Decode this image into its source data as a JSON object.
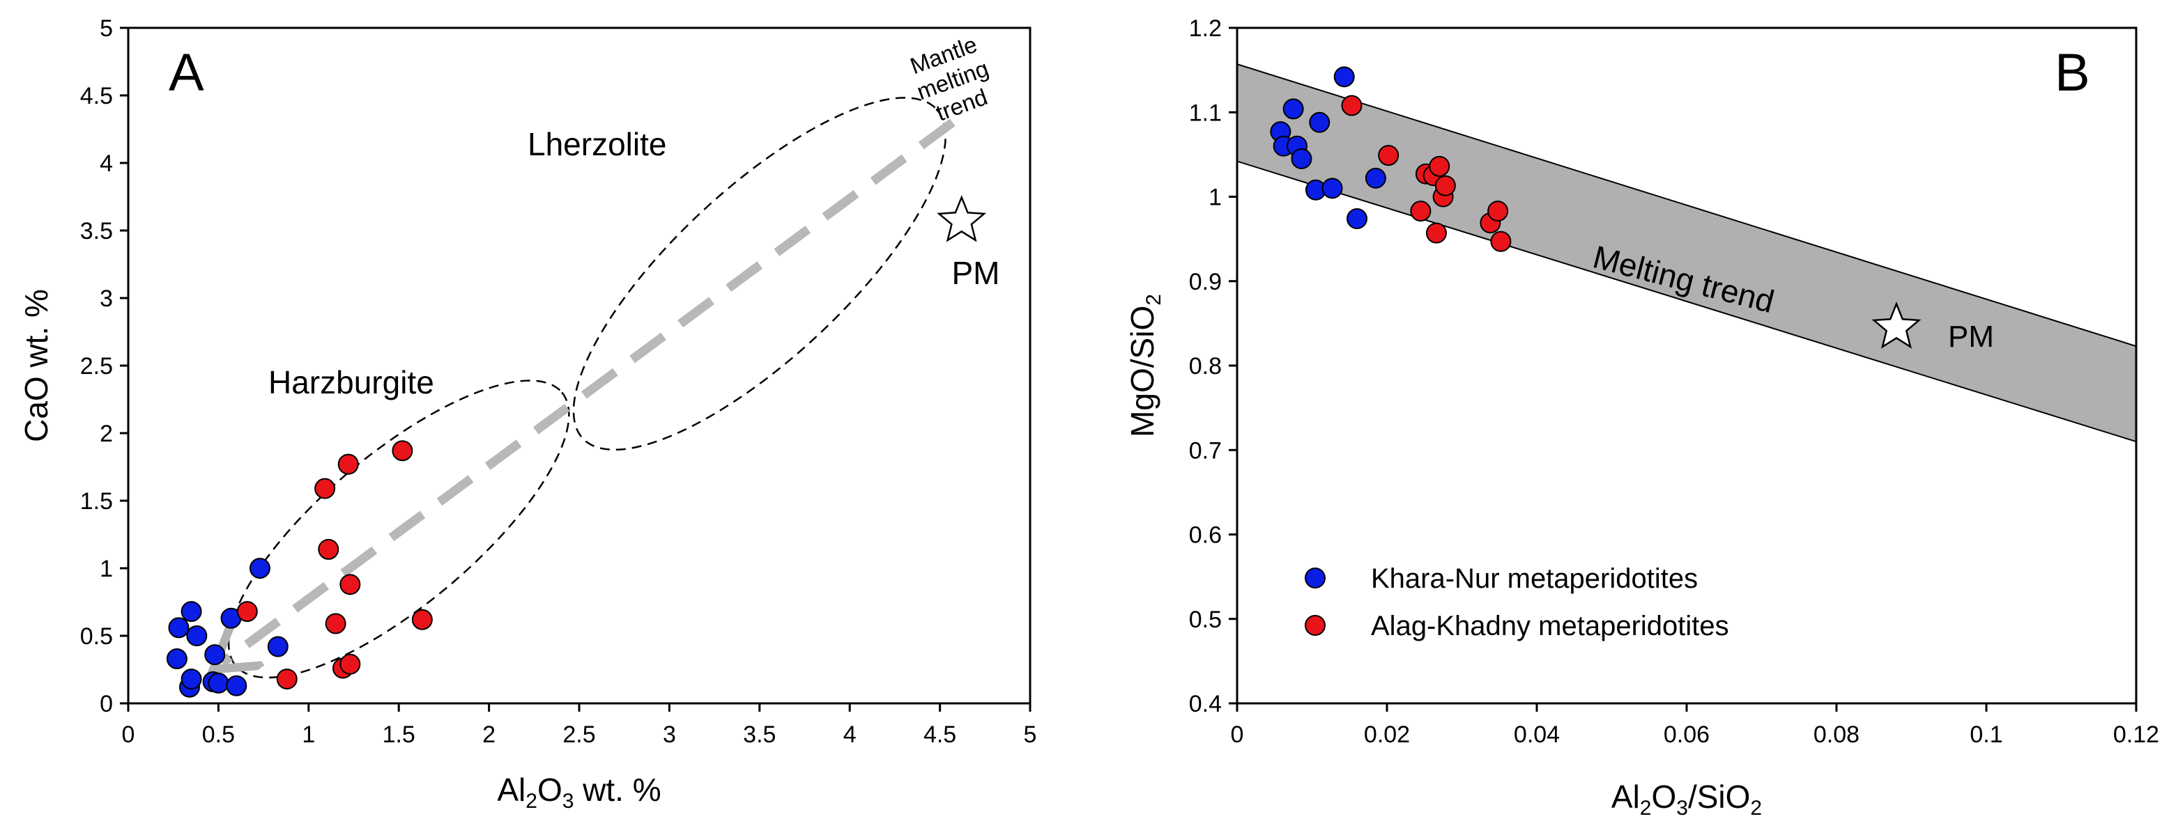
{
  "chart_data": [
    {
      "id": "A",
      "type": "scatter",
      "panel_label": "A",
      "xlabel": {
        "main": "Al",
        "sub1": "2",
        "mid": "O",
        "sub2": "3",
        "tail": " wt. %"
      },
      "ylabel": "CaO wt. %",
      "xlim": [
        0,
        5
      ],
      "ylim": [
        0,
        5
      ],
      "xticks": [
        0,
        0.5,
        1,
        1.5,
        2,
        2.5,
        3,
        3.5,
        4,
        4.5,
        5
      ],
      "yticks": [
        0,
        0.5,
        1,
        1.5,
        2,
        2.5,
        3,
        3.5,
        4,
        4.5,
        5
      ],
      "annotations": {
        "lherzolite": "Lherzolite",
        "harzburgite": "Harzburgite",
        "trend_lines": [
          "Mantle",
          "melting",
          "trend"
        ],
        "pm": "PM"
      },
      "trend_arrow": {
        "from": [
          4.57,
          4.3
        ],
        "to": [
          0.52,
          0.3
        ]
      },
      "fields": [
        {
          "name": "Harzburgite",
          "cx": 1.5,
          "cy": 1.29,
          "rx": 1.18,
          "ry": 0.42,
          "angle_deg": 40
        },
        {
          "name": "Lherzolite",
          "cx": 3.5,
          "cy": 3.18,
          "rx": 1.34,
          "ry": 0.47,
          "angle_deg": 43
        }
      ],
      "pm_point": {
        "x": 4.62,
        "y": 3.57
      },
      "series": [
        {
          "name": "Khara-Nur metaperidotites",
          "color": "#0a1ee6",
          "points": [
            [
              0.27,
              0.33
            ],
            [
              0.28,
              0.56
            ],
            [
              0.34,
              0.12
            ],
            [
              0.35,
              0.18
            ],
            [
              0.35,
              0.68
            ],
            [
              0.38,
              0.5
            ],
            [
              0.47,
              0.16
            ],
            [
              0.48,
              0.36
            ],
            [
              0.5,
              0.15
            ],
            [
              0.57,
              0.63
            ],
            [
              0.6,
              0.13
            ],
            [
              0.73,
              1.0
            ],
            [
              0.83,
              0.42
            ]
          ]
        },
        {
          "name": "Alag-Khadny metaperidotites",
          "color": "#e8141a",
          "points": [
            [
              0.66,
              0.68
            ],
            [
              0.88,
              0.18
            ],
            [
              1.09,
              1.59
            ],
            [
              1.11,
              1.14
            ],
            [
              1.15,
              0.59
            ],
            [
              1.19,
              0.26
            ],
            [
              1.22,
              1.77
            ],
            [
              1.23,
              0.88
            ],
            [
              1.23,
              0.29
            ],
            [
              1.52,
              1.87
            ],
            [
              1.63,
              0.62
            ]
          ]
        }
      ]
    },
    {
      "id": "B",
      "type": "scatter",
      "panel_label": "B",
      "xlabel": {
        "main": "Al",
        "sub1": "2",
        "mid": "O",
        "sub2": "3",
        "tail": "/SiO",
        "sub3": "2"
      },
      "ylabel": {
        "main": "MgO/SiO",
        "sub": "2"
      },
      "xlim": [
        0,
        0.12
      ],
      "ylim": [
        0.4,
        1.2
      ],
      "xticks": [
        0,
        0.02,
        0.04,
        0.06,
        0.08,
        0.1,
        0.12
      ],
      "xtick_labels": [
        "0",
        "0.02",
        "0.04",
        "0.06",
        "0.08",
        "0.1",
        "0.12"
      ],
      "yticks": [
        0.4,
        0.5,
        0.6,
        0.7,
        0.8,
        0.9,
        1.0,
        1.1,
        1.2
      ],
      "ytick_labels": [
        "0.4",
        "0.5",
        "0.6",
        "0.7",
        "0.8",
        "0.9",
        "1",
        "1.1",
        "1.2"
      ],
      "band": {
        "upper": [
          [
            0,
            1.157
          ],
          [
            0.12,
            0.823
          ]
        ],
        "lower": [
          [
            0,
            1.042
          ],
          [
            0.12,
            0.71
          ]
        ]
      },
      "annotations": {
        "trend": "Melting trend",
        "pm": "PM"
      },
      "pm_point": {
        "x": 0.088,
        "y": 0.845
      },
      "legend": [
        {
          "label": "Khara-Nur metaperidotites",
          "color": "#0a1ee6"
        },
        {
          "label": "Alag-Khadny metaperidotites",
          "color": "#e8141a"
        }
      ],
      "series": [
        {
          "name": "Khara-Nur metaperidotites",
          "color": "#0a1ee6",
          "points": [
            [
              0.0058,
              1.077
            ],
            [
              0.0062,
              1.06
            ],
            [
              0.0075,
              1.104
            ],
            [
              0.008,
              1.06
            ],
            [
              0.0086,
              1.045
            ],
            [
              0.0105,
              1.008
            ],
            [
              0.011,
              1.088
            ],
            [
              0.0127,
              1.01
            ],
            [
              0.0143,
              1.142
            ],
            [
              0.016,
              0.974
            ],
            [
              0.0185,
              1.022
            ]
          ]
        },
        {
          "name": "Alag-Khadny metaperidotites",
          "color": "#e8141a",
          "points": [
            [
              0.0153,
              1.108
            ],
            [
              0.0202,
              1.049
            ],
            [
              0.0245,
              0.983
            ],
            [
              0.0252,
              1.027
            ],
            [
              0.0262,
              1.025
            ],
            [
              0.0266,
              0.957
            ],
            [
              0.027,
              1.036
            ],
            [
              0.0275,
              1.0
            ],
            [
              0.0278,
              1.013
            ],
            [
              0.0338,
              0.969
            ],
            [
              0.0348,
              0.983
            ],
            [
              0.0352,
              0.947
            ]
          ]
        }
      ]
    }
  ]
}
